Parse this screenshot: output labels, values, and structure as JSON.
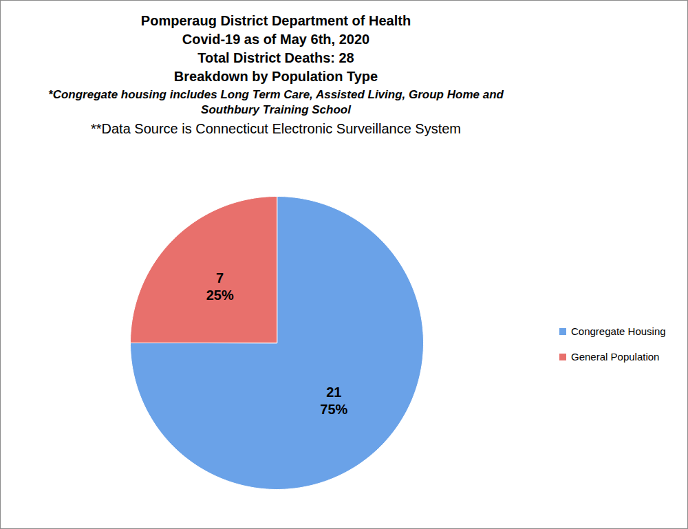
{
  "chart_data": {
    "type": "pie",
    "title": "Pomperaug District Department of Health",
    "subtitle": [
      "Covid-19 as of May 6th, 2020",
      "Total District Deaths:  28",
      "Breakdown by Population Type"
    ],
    "annotations": [
      "*Congregate housing includes Long Term Care, Assisted Living, Group Home and Southbury Training School",
      "**Data Source is Connecticut Electronic Surveillance System"
    ],
    "categories": [
      "Congregate Housing",
      "General Population"
    ],
    "values": [
      21,
      7
    ],
    "percentages": [
      75,
      25
    ],
    "percentage_labels": [
      "75%",
      "25%"
    ],
    "colors": [
      "#6aa2e8",
      "#e8706c"
    ],
    "data_labels": true,
    "legend": "right"
  }
}
